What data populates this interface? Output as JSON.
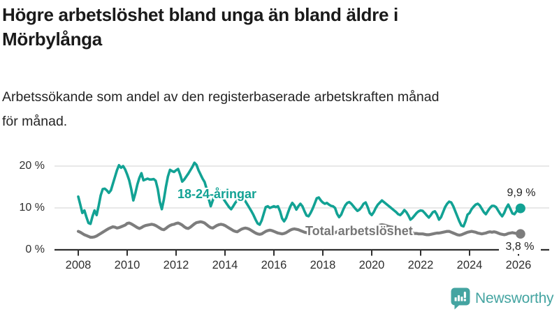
{
  "header": {
    "title_lines": [
      "Högre arbetslöshet bland unga än bland äldre i",
      "Mörbylånga"
    ],
    "subtitle_lines": [
      "Arbetssökande som andel av den registerbaserade arbetskraften månad",
      "för månad."
    ]
  },
  "chart_data": {
    "type": "line",
    "title": "Högre arbetslöshet bland unga än bland äldre i Mörbylånga",
    "subtitle": "Arbetssökande som andel av den registerbaserade arbetskraften månad för månad.",
    "xlabel": "",
    "ylabel": "",
    "ylim": [
      0,
      22
    ],
    "grid": "horizontal",
    "legend_position": "inline-labels",
    "frequency": "monthly",
    "x_start": "2008-01",
    "x_end": "2026-02",
    "x_tick_labels": [
      "2008",
      "2010",
      "2012",
      "2014",
      "2016",
      "2018",
      "2020",
      "2022",
      "2024",
      "2026"
    ],
    "y_tick_labels": [
      "0 %",
      "10 %",
      "20 %"
    ],
    "series": [
      {
        "name": "18-24-åringar",
        "color": "#12a294",
        "end_label": "9,9 %",
        "end_value": 9.9,
        "values": [
          12.7,
          10.8,
          8.8,
          9.4,
          7.8,
          6.4,
          6.2,
          8.0,
          9.4,
          8.3,
          10.5,
          13.0,
          14.5,
          14.6,
          14.2,
          13.6,
          14.2,
          15.8,
          17.4,
          19.0,
          20.2,
          19.6,
          20.0,
          19.2,
          18.0,
          16.6,
          14.5,
          11.8,
          13.5,
          15.6,
          17.2,
          18.3,
          16.6,
          16.8,
          17.0,
          16.8,
          16.8,
          16.9,
          16.5,
          14.5,
          11.5,
          9.7,
          12.0,
          15.0,
          17.5,
          19.1,
          18.8,
          18.6,
          19.0,
          19.3,
          18.0,
          16.3,
          16.8,
          17.5,
          18.2,
          19.0,
          19.8,
          20.8,
          20.3,
          19.0,
          18.0,
          17.0,
          16.2,
          14.5,
          12.2,
          10.4,
          11.8,
          13.2,
          14.2,
          14.4,
          13.6,
          12.4,
          11.6,
          10.9,
          10.2,
          9.7,
          10.4,
          11.2,
          11.8,
          12.2,
          12.4,
          12.2,
          11.6,
          10.8,
          10.0,
          9.2,
          8.3,
          7.2,
          6.3,
          6.0,
          7.0,
          8.6,
          10.2,
          10.4,
          10.0,
          10.2,
          10.4,
          10.2,
          10.4,
          9.2,
          7.5,
          6.8,
          7.6,
          9.0,
          10.3,
          11.2,
          10.6,
          9.6,
          10.4,
          11.0,
          10.4,
          9.2,
          8.2,
          8.0,
          8.8,
          9.8,
          11.0,
          12.3,
          12.5,
          11.8,
          11.3,
          11.0,
          11.2,
          10.8,
          10.5,
          10.4,
          10.0,
          8.6,
          7.8,
          8.4,
          9.6,
          10.6,
          11.2,
          11.4,
          11.0,
          10.4,
          9.8,
          9.3,
          9.6,
          10.2,
          11.0,
          11.3,
          10.2,
          8.8,
          8.3,
          9.0,
          10.0,
          10.8,
          11.3,
          11.8,
          11.4,
          11.0,
          10.6,
          10.2,
          9.8,
          9.4,
          9.0,
          8.5,
          8.3,
          8.8,
          9.5,
          9.0,
          8.2,
          7.2,
          7.6,
          8.2,
          8.8,
          9.2,
          9.4,
          9.3,
          8.8,
          8.2,
          7.7,
          8.3,
          9.0,
          9.2,
          8.4,
          7.2,
          7.8,
          9.0,
          10.2,
          11.0,
          11.5,
          11.3,
          10.4,
          9.2,
          8.0,
          6.8,
          5.8,
          5.6,
          6.8,
          8.4,
          8.8,
          9.7,
          10.3,
          10.8,
          11.0,
          10.6,
          9.8,
          9.0,
          8.5,
          9.3,
          10.0,
          10.5,
          10.5,
          10.2,
          9.4,
          8.6,
          8.0,
          8.8,
          10.0,
          10.8,
          9.8,
          8.7,
          8.5,
          9.2,
          9.6,
          9.9
        ]
      },
      {
        "name": "Total arbetslöshet",
        "color": "#7d7d7d",
        "end_label": "3,8 %",
        "end_value": 3.8,
        "values": [
          4.4,
          4.2,
          3.9,
          3.6,
          3.4,
          3.2,
          3.0,
          3.0,
          3.1,
          3.3,
          3.6,
          3.9,
          4.2,
          4.5,
          4.8,
          5.1,
          5.3,
          5.5,
          5.4,
          5.2,
          5.3,
          5.5,
          5.7,
          5.9,
          6.3,
          6.4,
          6.2,
          5.9,
          5.6,
          5.3,
          5.1,
          5.3,
          5.6,
          5.8,
          5.9,
          6.0,
          6.1,
          6.0,
          5.8,
          5.5,
          5.2,
          4.9,
          4.8,
          5.1,
          5.5,
          5.8,
          6.0,
          6.1,
          6.3,
          6.4,
          6.2,
          5.9,
          5.5,
          5.2,
          5.1,
          5.4,
          5.8,
          6.2,
          6.5,
          6.6,
          6.7,
          6.6,
          6.4,
          6.0,
          5.6,
          5.3,
          5.2,
          5.5,
          5.8,
          6.0,
          6.1,
          6.0,
          5.8,
          5.5,
          5.2,
          4.9,
          4.6,
          4.4,
          4.3,
          4.6,
          4.9,
          5.1,
          5.2,
          5.1,
          4.9,
          4.6,
          4.3,
          4.0,
          3.8,
          3.7,
          3.8,
          4.1,
          4.4,
          4.6,
          4.7,
          4.6,
          4.4,
          4.2,
          4.0,
          3.9,
          3.8,
          3.9,
          4.1,
          4.4,
          4.7,
          4.9,
          5.0,
          4.9,
          4.8,
          4.6,
          4.4,
          4.2,
          4.1,
          4.2,
          4.4,
          4.6,
          4.8,
          4.9,
          5.0,
          4.9,
          4.8,
          4.6,
          4.4,
          4.2,
          4.1,
          4.0,
          4.1,
          4.3,
          4.5,
          4.6,
          4.6,
          4.5,
          4.4,
          4.3,
          4.2,
          4.1,
          4.0,
          4.1,
          4.2,
          4.4,
          4.6,
          4.7,
          4.8,
          4.7,
          4.8,
          4.9,
          5.2,
          5.6,
          5.9,
          6.0,
          5.9,
          5.8,
          5.6,
          5.5,
          5.4,
          5.3,
          5.2,
          5.1,
          4.9,
          4.7,
          4.5,
          4.3,
          4.2,
          4.1,
          4.0,
          3.9,
          3.9,
          3.8,
          3.8,
          3.8,
          3.7,
          3.6,
          3.6,
          3.7,
          3.8,
          3.9,
          4.0,
          4.0,
          4.1,
          4.2,
          4.3,
          4.4,
          4.4,
          4.2,
          4.0,
          3.8,
          3.6,
          3.5,
          3.6,
          3.8,
          4.0,
          4.2,
          4.3,
          4.4,
          4.3,
          4.2,
          4.0,
          3.9,
          3.8,
          3.9,
          4.0,
          4.2,
          4.3,
          4.2,
          4.3,
          4.2,
          4.0,
          3.8,
          3.7,
          3.6,
          3.7,
          3.9,
          4.0,
          4.1,
          4.0,
          3.9,
          3.9,
          3.8
        ]
      }
    ]
  },
  "branding": {
    "logo_text": "Newsworthy",
    "logo_color": "#44a4a1",
    "logo_icon": "bar-chart-speech-bubble-icon"
  },
  "colors": {
    "youth_line": "#12a294",
    "total_line": "#7d7d7d",
    "gridline": "#d9d9d9",
    "axis": "#2f2f2f",
    "title_text": "#1a1a1a",
    "value_label_text": "#222222"
  }
}
